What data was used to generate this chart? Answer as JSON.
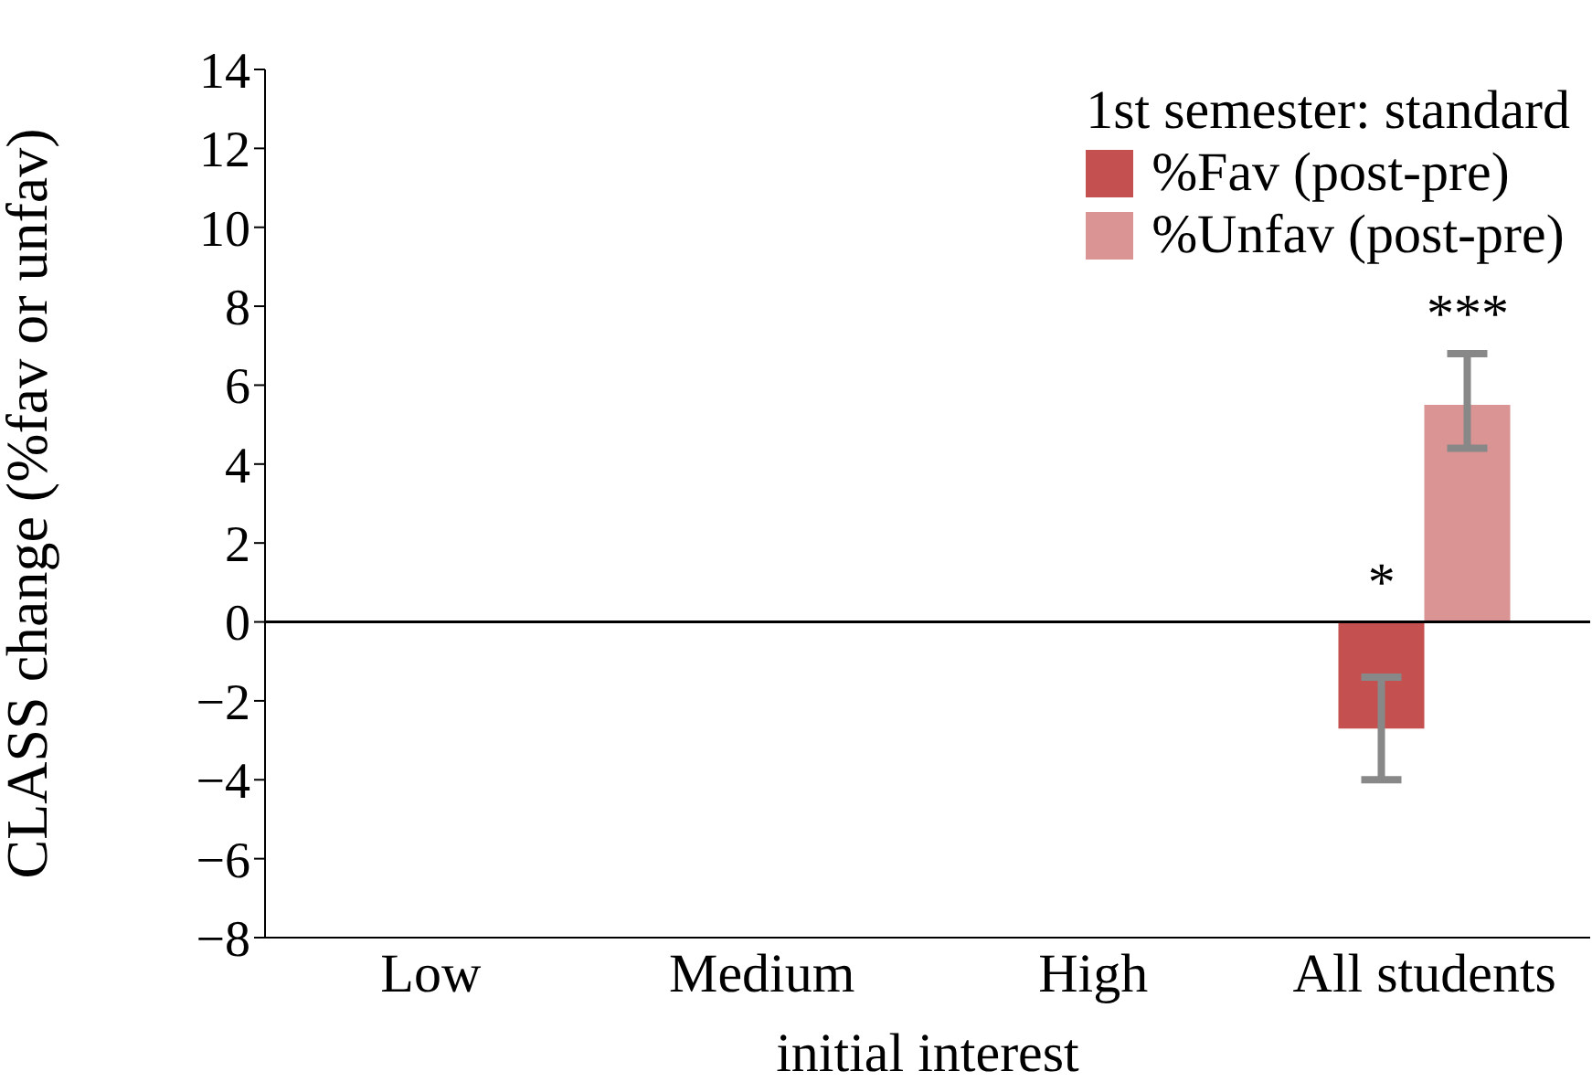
{
  "chart_data": {
    "type": "bar",
    "xlabel": "initial interest",
    "ylabel": "CLASS change (%fav or unfav)",
    "legend_title": "1st semester: standard",
    "categories": [
      "Low",
      "Medium",
      "High",
      "All students"
    ],
    "series": [
      {
        "name": "%Fav (post-pre)",
        "color": "#c4504f",
        "values": [
          null,
          null,
          null,
          -2.7
        ],
        "errors": [
          null,
          null,
          null,
          [
            -4.0,
            -1.4
          ]
        ]
      },
      {
        "name": "%Unfav (post-pre)",
        "color": "#da9494",
        "values": [
          null,
          null,
          null,
          5.5
        ],
        "errors": [
          null,
          null,
          null,
          [
            4.4,
            6.8
          ]
        ]
      }
    ],
    "ylim": [
      -8,
      14
    ],
    "yticks": [
      -8,
      -6,
      -4,
      -2,
      0,
      2,
      4,
      6,
      8,
      10,
      12,
      14
    ],
    "ref_lines": [
      {
        "axis": "y",
        "value": 0,
        "color": "#000000"
      }
    ],
    "annotations": [
      "*",
      "***"
    ],
    "legend": "top right"
  }
}
